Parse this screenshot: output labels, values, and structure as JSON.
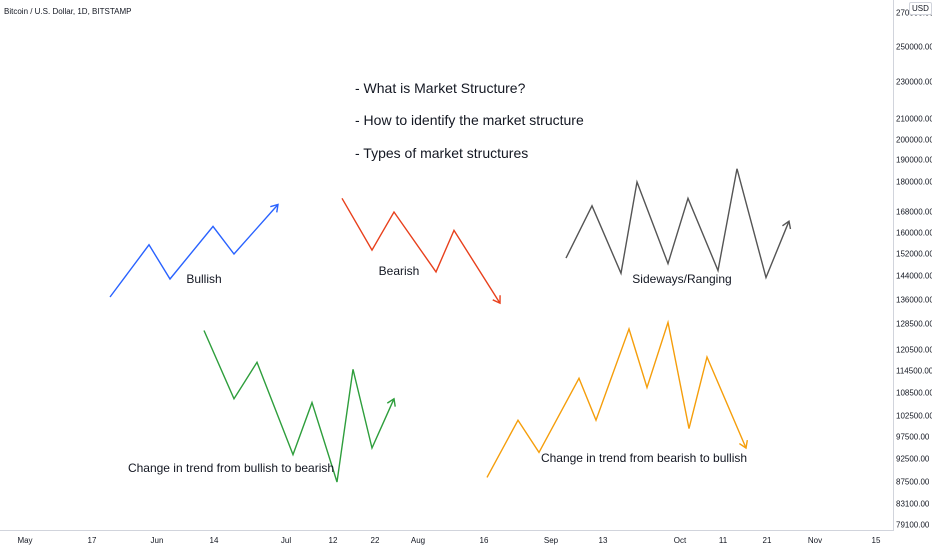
{
  "symbol": "Bitcoin / U.S. Dollar, 1D, BITSTAMP",
  "currency": "USD",
  "price_axis": [
    "270000.00",
    "250000.00",
    "230000.00",
    "210000.00",
    "200000.00",
    "190000.00",
    "180000.00",
    "168000.00",
    "160000.00",
    "152000.00",
    "144000.00",
    "136000.00",
    "128500.00",
    "120500.00",
    "114500.00",
    "108500.00",
    "102500.00",
    "97500.00",
    "92500.00",
    "87500.00",
    "83100.00",
    "79100.00"
  ],
  "time_axis": [
    "May",
    "17",
    "Jun",
    "14",
    "Jul",
    "12",
    "22",
    "Aug",
    "16",
    "Sep",
    "13",
    "Oct",
    "11",
    "21",
    "Nov",
    "15"
  ],
  "headline": {
    "bullets": [
      "- What is Market Structure?",
      "- How to identify the market structure",
      "- Types of market structures"
    ]
  },
  "chart_data": {
    "type": "line",
    "title": "",
    "xlabel": "",
    "ylabel": "",
    "annotations": [
      "Bullish",
      "Bearish",
      "Sideways/Ranging",
      "Change in trend from bullish to bearish",
      "Change in trend from bearish to bullish"
    ],
    "series": [
      {
        "name": "Bullish",
        "color": "#2962ff",
        "values": [
          137000,
          155500,
          143000,
          162500,
          152000,
          171000
        ]
      },
      {
        "name": "Bearish",
        "color": "#e8401c",
        "values": [
          173500,
          153500,
          168000,
          145500,
          161000,
          135000
        ]
      },
      {
        "name": "Sideways/Ranging",
        "color": "#555555",
        "values": [
          150500,
          170500,
          145000,
          180000,
          148500,
          173500,
          146000,
          186000,
          143500,
          164500
        ]
      },
      {
        "name": "Change in trend from bullish to bearish",
        "color": "#2e9e3c",
        "values": [
          126500,
          107000,
          117000,
          93500,
          106000,
          87500,
          115000,
          95000,
          107000
        ]
      },
      {
        "name": "Change in trend from bearish to bullish",
        "color": "#f59e0b",
        "values": [
          88500,
          101500,
          94000,
          112500,
          101500,
          127000,
          110000,
          129000,
          99500,
          118500,
          95000
        ]
      }
    ]
  }
}
